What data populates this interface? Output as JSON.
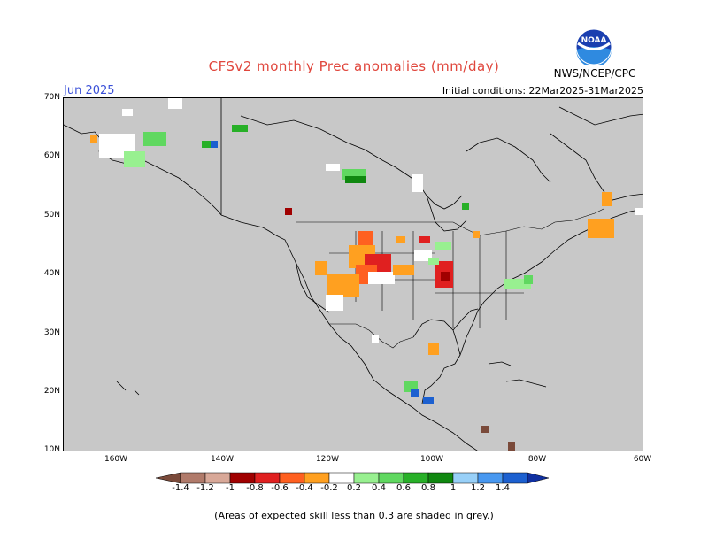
{
  "title": "CFSv2 monthly Prec anomalies (mm/day)",
  "month": "Jun 2025",
  "initial_conditions": "Initial conditions: 22Mar2025-31Mar2025",
  "agency": "NWS/NCEP/CPC",
  "logo_text": "NOAA",
  "lat_labels": [
    "70N",
    "60N",
    "50N",
    "40N",
    "30N",
    "20N",
    "10N"
  ],
  "lon_labels": [
    "160W",
    "140W",
    "120W",
    "100W",
    "80W",
    "60W"
  ],
  "colorbar": {
    "labels": [
      "-1.4",
      "-1.2",
      "-1",
      "-0.8",
      "-0.6",
      "-0.4",
      "-0.2",
      "0.2",
      "0.4",
      "0.6",
      "0.8",
      "1",
      "1.2",
      "1.4"
    ],
    "colors": [
      "#7a4a3a",
      "#b07a6a",
      "#d8a898",
      "#a00000",
      "#e02020",
      "#ff6020",
      "#ffa020",
      "#ffffff",
      "#98f090",
      "#60d860",
      "#28b028",
      "#108810",
      "#98d0f8",
      "#4898f0",
      "#1c60d0",
      "#1030a0"
    ]
  },
  "footnote": "(Areas of expected skill less than 0.3 are shaded in grey.)",
  "colors": {
    "background": "#ffffff",
    "map_grey": "#c8c8c8",
    "title_red": "#e0463c",
    "month_blue": "#3a50d8"
  }
}
